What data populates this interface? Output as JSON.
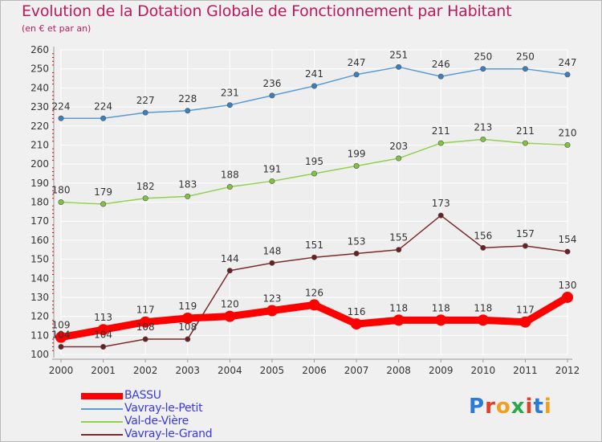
{
  "header": {
    "title": "Evolution de la Dotation Globale de Fonctionnement par Habitant",
    "subtitle": "(en € et par an)"
  },
  "logo": {
    "text": "Proxiti"
  },
  "colors": {
    "background": "#f0f0f0",
    "grid": "#ffffff",
    "title": "#c2185b",
    "legend_text": "#3a3adf",
    "axis_ticks": "#e0001a"
  },
  "chart_data": {
    "type": "line",
    "title": "Evolution de la Dotation Globale de Fonctionnement par Habitant",
    "subtitle": "(en € et par an)",
    "xlabel": "",
    "ylabel": "",
    "x": [
      2000,
      2001,
      2002,
      2003,
      2004,
      2005,
      2006,
      2007,
      2008,
      2009,
      2010,
      2011,
      2012
    ],
    "ylim": [
      100,
      260
    ],
    "yticks": [
      100,
      110,
      120,
      130,
      140,
      150,
      160,
      170,
      180,
      190,
      200,
      210,
      220,
      230,
      240,
      250,
      260
    ],
    "grid": true,
    "legend": "bottom-left",
    "series": [
      {
        "name": "BASSU",
        "color": "#ff0000",
        "width": 9,
        "values": [
          109,
          113,
          117,
          119,
          120,
          123,
          126,
          116,
          118,
          118,
          118,
          117,
          130
        ]
      },
      {
        "name": "Vavray-le-Petit",
        "color": "#5b9bd5",
        "point_color": "#3a7fc0",
        "width": 1.5,
        "values": [
          224,
          224,
          227,
          228,
          231,
          236,
          241,
          247,
          251,
          246,
          250,
          250,
          247
        ]
      },
      {
        "name": "Val-de-Vière",
        "color": "#92d050",
        "point_color": "#7fc340",
        "width": 1.5,
        "values": [
          180,
          179,
          182,
          183,
          188,
          191,
          195,
          199,
          203,
          211,
          213,
          211,
          210
        ]
      },
      {
        "name": "Vavray-le-Grand",
        "color": "#7b2c2c",
        "point_color": "#6a2020",
        "width": 1.5,
        "values": [
          104,
          104,
          108,
          108,
          144,
          148,
          151,
          153,
          155,
          173,
          156,
          157,
          154
        ]
      }
    ]
  }
}
